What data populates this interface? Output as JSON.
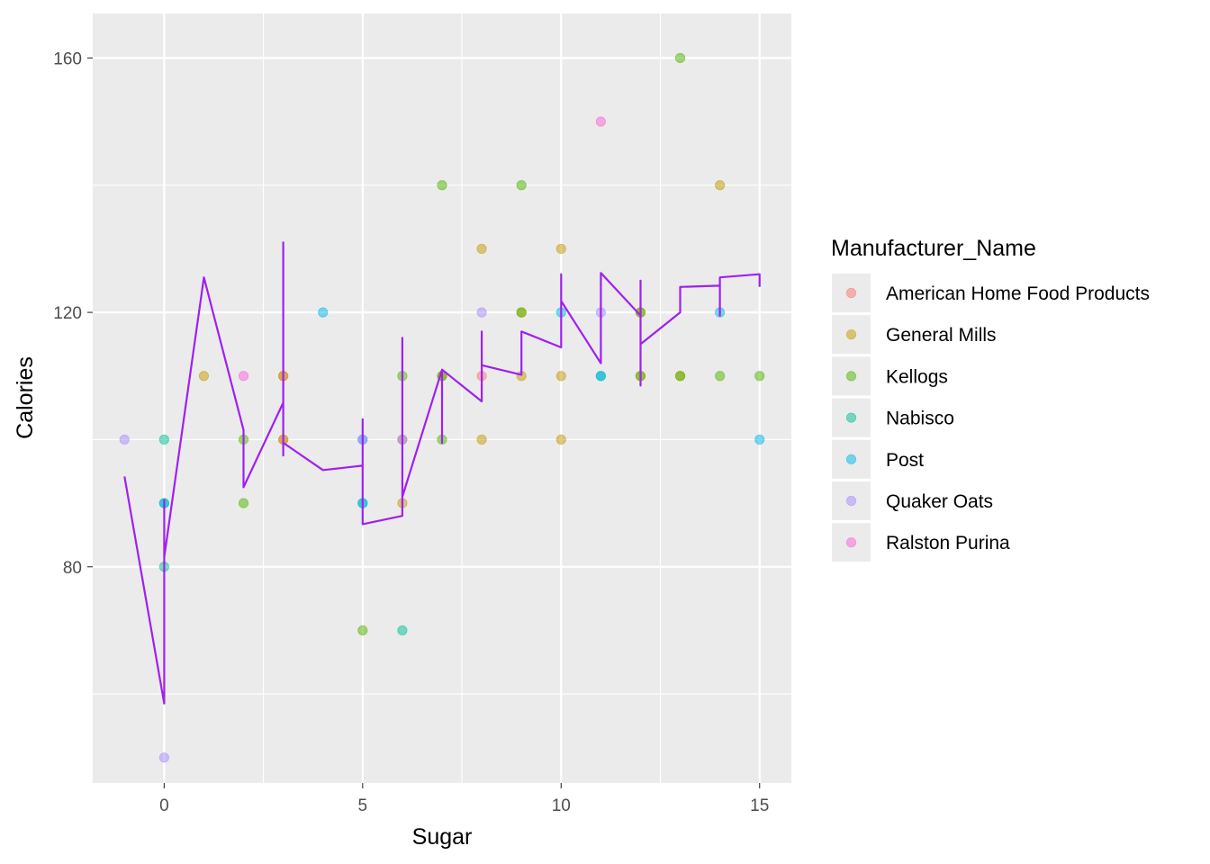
{
  "chart_data": {
    "type": "scatter",
    "title": "",
    "xlabel": "Sugar",
    "ylabel": "Calories",
    "xlim": [
      -1.8,
      15.8
    ],
    "ylim": [
      46,
      167
    ],
    "x_ticks": [
      0,
      5,
      10,
      15
    ],
    "x_tick_labels": [
      "0",
      "5",
      "10",
      "15"
    ],
    "y_ticks": [
      80,
      120,
      160
    ],
    "y_tick_labels": [
      "80",
      "120",
      "160"
    ],
    "grid": true,
    "panel_background": "#ebebeb",
    "legend": {
      "title": "Manufacturer_Name",
      "placement": "right"
    },
    "series": [
      {
        "name": "American Home Food Products",
        "color": "#F8766D",
        "points": [
          [
            3,
            100
          ],
          [
            3,
            110
          ],
          [
            8,
            110
          ]
        ]
      },
      {
        "name": "General Mills",
        "color": "#C49A00",
        "points": [
          [
            1,
            110
          ],
          [
            3,
            110
          ],
          [
            3,
            100
          ],
          [
            6,
            90
          ],
          [
            6,
            100
          ],
          [
            7,
            110
          ],
          [
            8,
            130
          ],
          [
            8,
            100
          ],
          [
            9,
            120
          ],
          [
            9,
            110
          ],
          [
            10,
            130
          ],
          [
            10,
            110
          ],
          [
            10,
            100
          ],
          [
            12,
            110
          ],
          [
            12,
            120
          ],
          [
            13,
            110
          ],
          [
            14,
            140
          ]
        ]
      },
      {
        "name": "Kellogs",
        "color": "#53B400",
        "points": [
          [
            2,
            100
          ],
          [
            2,
            90
          ],
          [
            5,
            70
          ],
          [
            6,
            110
          ],
          [
            7,
            140
          ],
          [
            7,
            110
          ],
          [
            7,
            100
          ],
          [
            9,
            140
          ],
          [
            9,
            120
          ],
          [
            12,
            110
          ],
          [
            12,
            120
          ],
          [
            13,
            160
          ],
          [
            13,
            110
          ],
          [
            14,
            110
          ],
          [
            15,
            110
          ]
        ]
      },
      {
        "name": "Nabisco",
        "color": "#00C094",
        "points": [
          [
            0,
            100
          ],
          [
            0,
            90
          ],
          [
            0,
            80
          ],
          [
            5,
            90
          ],
          [
            6,
            70
          ],
          [
            11,
            110
          ]
        ]
      },
      {
        "name": "Post",
        "color": "#00B6EB",
        "points": [
          [
            0,
            90
          ],
          [
            4,
            120
          ],
          [
            5,
            100
          ],
          [
            5,
            90
          ],
          [
            10,
            120
          ],
          [
            11,
            110
          ],
          [
            14,
            120
          ],
          [
            15,
            100
          ]
        ]
      },
      {
        "name": "Quaker Oats",
        "color": "#A58AFF",
        "points": [
          [
            -1,
            100
          ],
          [
            0,
            50
          ],
          [
            5,
            100
          ],
          [
            6,
            100
          ],
          [
            8,
            120
          ],
          [
            11,
            120
          ]
        ]
      },
      {
        "name": "Ralston Purina",
        "color": "#FB61D7",
        "points": [
          [
            2,
            110
          ],
          [
            11,
            150
          ]
        ]
      }
    ],
    "trend_line": {
      "color": "#A020F0",
      "points": [
        [
          -1,
          94.2
        ],
        [
          0,
          58.5
        ],
        [
          0,
          90.5
        ],
        [
          0,
          81.5
        ],
        [
          1,
          125.5
        ],
        [
          2,
          101.5
        ],
        [
          2,
          92.5
        ],
        [
          3,
          105.8
        ],
        [
          3,
          131.0
        ],
        [
          3,
          97.5
        ],
        [
          3,
          99.5
        ],
        [
          4,
          95.2
        ],
        [
          5,
          95.9
        ],
        [
          5,
          103.2
        ],
        [
          5,
          86.7
        ],
        [
          6,
          88.0
        ],
        [
          6,
          116.0
        ],
        [
          6,
          91.0
        ],
        [
          7,
          111.0
        ],
        [
          7,
          99.5
        ],
        [
          7,
          111.0
        ],
        [
          8,
          106.0
        ],
        [
          8,
          117.0
        ],
        [
          8,
          111.7
        ],
        [
          9,
          110.2
        ],
        [
          9,
          117.0
        ],
        [
          10,
          114.5
        ],
        [
          10,
          126.0
        ],
        [
          10,
          121.8
        ],
        [
          11,
          112.0
        ],
        [
          11,
          126.2
        ],
        [
          12,
          119.5
        ],
        [
          12,
          125.0
        ],
        [
          12,
          108.5
        ],
        [
          12,
          115.0
        ],
        [
          13,
          120.0
        ],
        [
          13,
          124.0
        ],
        [
          14,
          124.2
        ],
        [
          14,
          119.5
        ],
        [
          14,
          125.5
        ],
        [
          15,
          126.0
        ],
        [
          15,
          124.0
        ]
      ]
    }
  }
}
